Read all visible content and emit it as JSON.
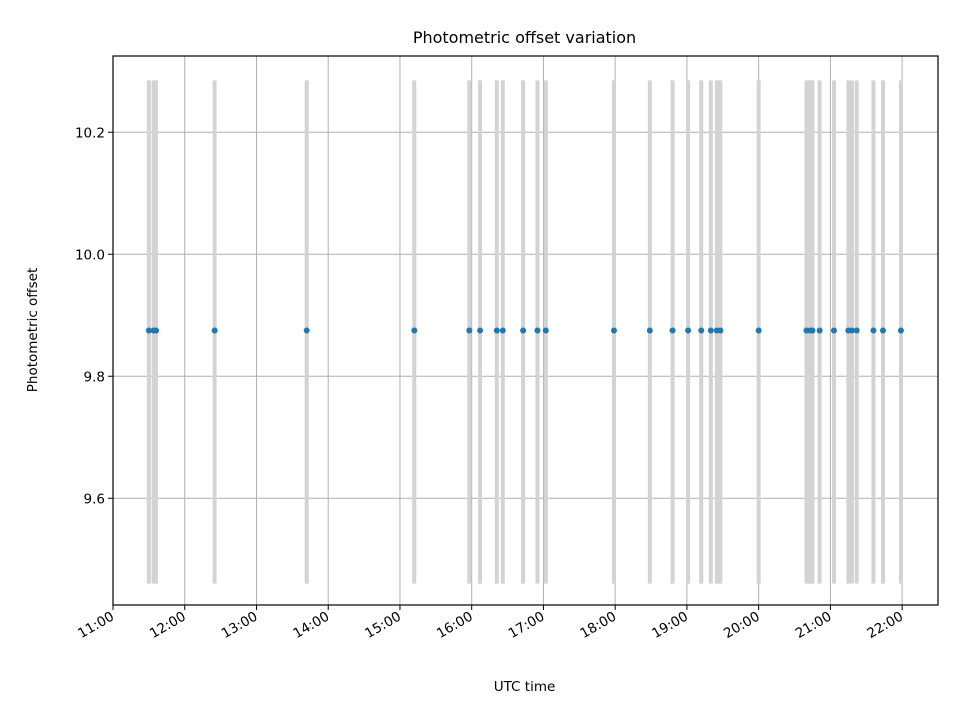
{
  "chart_data": {
    "type": "scatter",
    "title": "Photometric offset variation",
    "xlabel": "UTC time",
    "ylabel": "Photometric offset",
    "xlim": [
      "11:00",
      "22:30"
    ],
    "ylim": [
      9.425,
      10.325
    ],
    "grid": true,
    "x_ticks": [
      "11:00",
      "12:00",
      "13:00",
      "14:00",
      "15:00",
      "16:00",
      "17:00",
      "18:00",
      "19:00",
      "20:00",
      "21:00",
      "22:00"
    ],
    "y_ticks": [
      9.6,
      9.8,
      10.0,
      10.2
    ],
    "y_tick_labels": [
      "9.6",
      "9.8",
      "10.0",
      "10.2"
    ],
    "error_bar_range": [
      9.46,
      10.285
    ],
    "point_color": "#1f77b4",
    "error_bar_color": "#d3d3d3",
    "series": [
      {
        "x": [
          "11:30",
          "11:34",
          "11:36",
          "12:25",
          "13:42",
          "15:12",
          "15:58",
          "16:07",
          "16:21",
          "16:26",
          "16:43",
          "16:55",
          "17:02",
          "17:59",
          "18:29",
          "18:48",
          "19:01",
          "19:12",
          "19:20",
          "19:25",
          "19:28",
          "20:00",
          "20:40",
          "20:43",
          "20:45",
          "20:51",
          "21:03",
          "21:15",
          "21:18",
          "21:22",
          "21:36",
          "21:44",
          "21:59"
        ],
        "y": [
          9.875,
          9.875,
          9.875,
          9.875,
          9.875,
          9.875,
          9.875,
          9.875,
          9.875,
          9.875,
          9.875,
          9.875,
          9.875,
          9.875,
          9.875,
          9.875,
          9.875,
          9.875,
          9.875,
          9.875,
          9.875,
          9.875,
          9.875,
          9.875,
          9.875,
          9.875,
          9.875,
          9.875,
          9.875,
          9.875,
          9.875,
          9.875,
          9.875
        ]
      }
    ]
  }
}
